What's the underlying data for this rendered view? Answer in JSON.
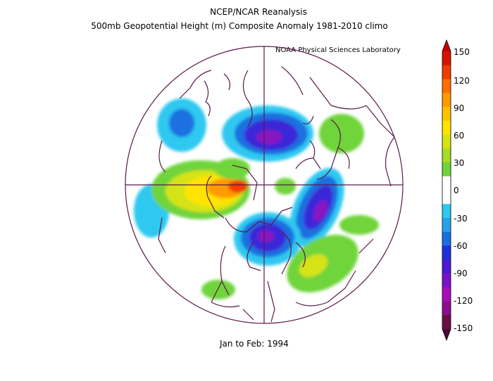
{
  "header": {
    "line1": "NCEP/NCAR Reanalysis",
    "line2": "500mb Geopotential Height (m) Composite Anomaly 1981-2010 climo",
    "credit": "NOAA Physical Sciences Laboratory"
  },
  "footer": {
    "period": "Jan to Feb: 1994"
  },
  "colorbar": {
    "ticks": [
      "150",
      "120",
      "90",
      "60",
      "30",
      "0",
      "-30",
      "-60",
      "-90",
      "-120",
      "-150"
    ],
    "colors": [
      "#6a0f3f",
      "#8b0e8e",
      "#a80fb8",
      "#7a12c9",
      "#4b1bd6",
      "#2031d9",
      "#1a6fe0",
      "#25a3e8",
      "#2ec8f0",
      "#ffffff",
      "#ffffff",
      "#6fd43a",
      "#a6dd26",
      "#d6e315",
      "#ffe400",
      "#ffc200",
      "#ff9a00",
      "#ff6e00",
      "#f03c00",
      "#d61500"
    ],
    "max_color": "#c80000",
    "min_color": "#4a0a38"
  },
  "map_colors": {
    "outline": "#5a1a4a",
    "neg30": "#2ec8f0",
    "neg60": "#1a6fe0",
    "neg90": "#3a28d8",
    "neg120": "#8a12c0",
    "pos30": "#6fd43a",
    "pos60": "#d6e315",
    "pos90": "#ffe400",
    "pos120": "#ff9a00",
    "pos150": "#f03c00"
  }
}
